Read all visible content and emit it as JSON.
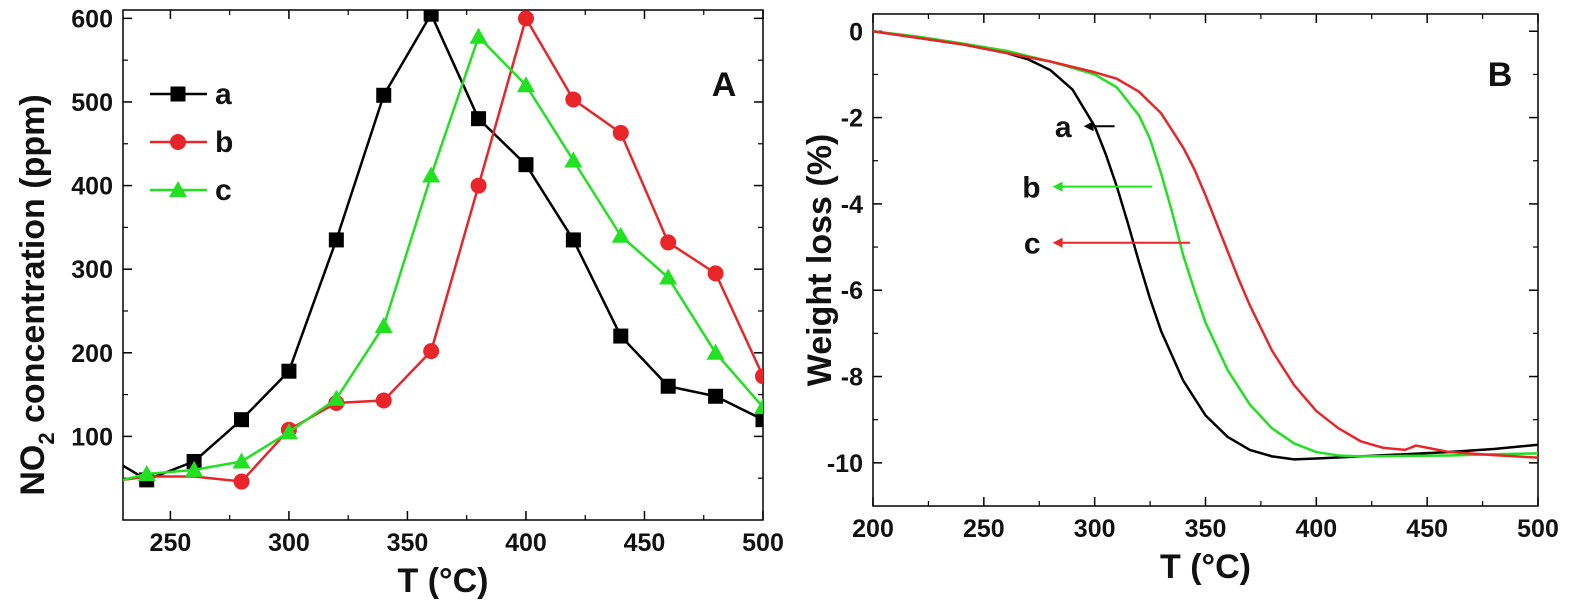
{
  "chart_data": [
    {
      "type": "line",
      "panel_label": "A",
      "xlabel": "T (°C)",
      "ylabel_parts": [
        "NO",
        "2",
        " concentration (ppm)"
      ],
      "xlim": [
        230,
        500
      ],
      "ylim": [
        0,
        610
      ],
      "xticks": [
        250,
        300,
        350,
        400,
        450,
        500
      ],
      "yticks": [
        100,
        200,
        300,
        400,
        500,
        600
      ],
      "legend_position": "top-left",
      "series": [
        {
          "name": "a",
          "color": "#000000",
          "marker": "square",
          "x": [
            230,
            240,
            260,
            280,
            300,
            320,
            340,
            360,
            380,
            400,
            420,
            440,
            460,
            480,
            500
          ],
          "y": [
            65,
            48,
            70,
            120,
            178,
            335,
            508,
            605,
            480,
            425,
            335,
            220,
            160,
            148,
            120
          ],
          "marker_start": 1
        },
        {
          "name": "b",
          "color": "#e8262a",
          "marker": "circle",
          "x": [
            230,
            240,
            260,
            280,
            300,
            320,
            340,
            360,
            380,
            400,
            420,
            440,
            460,
            480,
            500
          ],
          "y": [
            48,
            52,
            52,
            46,
            108,
            140,
            143,
            202,
            400,
            600,
            503,
            463,
            332,
            295,
            172
          ],
          "marker_start": 3
        },
        {
          "name": "c",
          "color": "#22e022",
          "marker": "triangle",
          "x": [
            230,
            240,
            260,
            280,
            300,
            320,
            340,
            360,
            380,
            400,
            420,
            440,
            460,
            480,
            500
          ],
          "y": [
            48,
            55,
            60,
            70,
            105,
            145,
            232,
            412,
            578,
            520,
            430,
            340,
            290,
            200,
            135
          ],
          "marker_start": 1
        }
      ]
    },
    {
      "type": "line",
      "panel_label": "B",
      "xlabel": "T (°C)",
      "ylabel": "Weight loss (%)",
      "xlim": [
        200,
        500
      ],
      "ylim": [
        -11,
        0.4
      ],
      "xticks": [
        200,
        250,
        300,
        350,
        400,
        450,
        500
      ],
      "yticks": [
        0,
        -2,
        -4,
        -6,
        -8,
        -10
      ],
      "series": [
        {
          "name": "a",
          "color": "#000000",
          "x": [
            200,
            220,
            240,
            260,
            270,
            280,
            290,
            300,
            305,
            310,
            315,
            320,
            325,
            330,
            340,
            350,
            360,
            370,
            380,
            390,
            400,
            420,
            440,
            460,
            480,
            500
          ],
          "y": [
            0,
            -0.15,
            -0.3,
            -0.5,
            -0.65,
            -0.9,
            -1.35,
            -2.2,
            -2.85,
            -3.6,
            -4.45,
            -5.35,
            -6.2,
            -6.95,
            -8.1,
            -8.9,
            -9.4,
            -9.7,
            -9.85,
            -9.92,
            -9.9,
            -9.85,
            -9.8,
            -9.75,
            -9.68,
            -9.58
          ]
        },
        {
          "name": "b",
          "color": "#22e022",
          "x": [
            200,
            220,
            240,
            260,
            280,
            300,
            310,
            320,
            325,
            330,
            335,
            340,
            345,
            350,
            360,
            370,
            380,
            390,
            400,
            410,
            420,
            440,
            460,
            480,
            500
          ],
          "y": [
            0,
            -0.12,
            -0.28,
            -0.45,
            -0.7,
            -1.0,
            -1.3,
            -1.95,
            -2.5,
            -3.3,
            -4.2,
            -5.2,
            -6.0,
            -6.75,
            -7.85,
            -8.65,
            -9.2,
            -9.55,
            -9.75,
            -9.83,
            -9.85,
            -9.84,
            -9.83,
            -9.8,
            -9.78
          ]
        },
        {
          "name": "c",
          "color": "#e8262a",
          "x": [
            200,
            220,
            240,
            260,
            280,
            300,
            310,
            320,
            330,
            340,
            345,
            350,
            355,
            360,
            365,
            370,
            380,
            390,
            400,
            410,
            420,
            430,
            440,
            445,
            450,
            460,
            480,
            500
          ],
          "y": [
            0,
            -0.15,
            -0.3,
            -0.5,
            -0.7,
            -0.95,
            -1.1,
            -1.4,
            -1.9,
            -2.7,
            -3.2,
            -3.8,
            -4.45,
            -5.1,
            -5.75,
            -6.35,
            -7.4,
            -8.2,
            -8.8,
            -9.2,
            -9.5,
            -9.65,
            -9.7,
            -9.6,
            -9.65,
            -9.75,
            -9.82,
            -9.88
          ]
        }
      ],
      "annotations": [
        {
          "label": "a",
          "color": "#000000",
          "x_from": 309,
          "x_to": 295,
          "y": -2.2
        },
        {
          "label": "b",
          "color": "#22e022",
          "x_from": 326,
          "x_to": 281,
          "y": -3.6
        },
        {
          "label": "c",
          "color": "#e8262a",
          "x_from": 343,
          "x_to": 281,
          "y": -4.9
        }
      ]
    }
  ]
}
